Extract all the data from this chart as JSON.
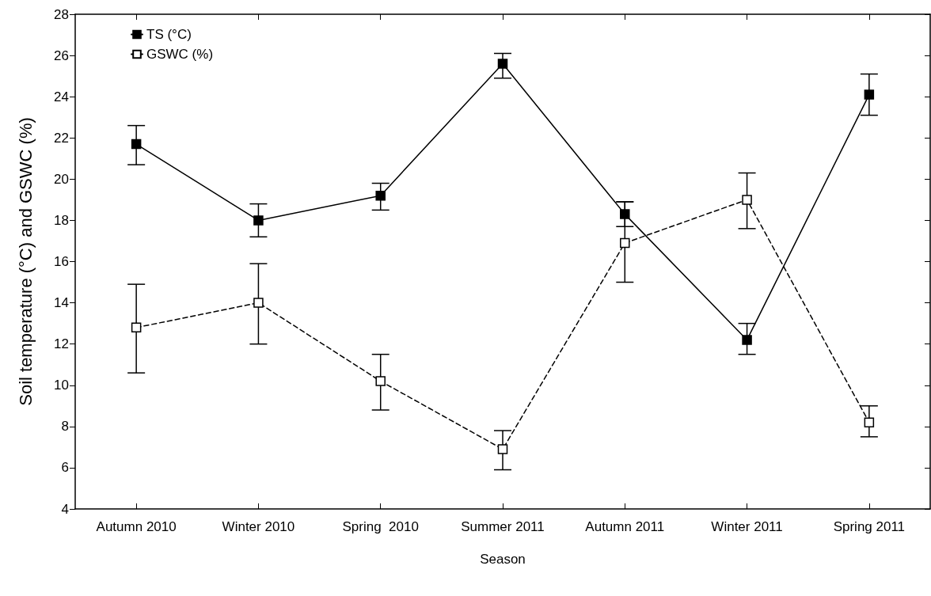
{
  "chart_data": {
    "type": "line",
    "xlabel": "Season",
    "ylabel": "Soil temperature (°C) and GSWC (%)",
    "categories": [
      "Autumn 2010",
      "Winter 2010",
      "Spring  2010",
      "Summer 2011",
      "Autumn 2011",
      "Winter 2011",
      "Spring 2011"
    ],
    "ylim": [
      4,
      28
    ],
    "yticks": [
      4,
      6,
      8,
      10,
      12,
      14,
      16,
      18,
      20,
      22,
      24,
      26,
      28
    ],
    "grid": false,
    "legend": "top left",
    "marker": "square",
    "series": [
      {
        "name": "TS (°C)",
        "color": "#000000",
        "line_style": "solid",
        "values": [
          21.7,
          18.0,
          19.2,
          25.6,
          18.3,
          12.2,
          24.1
        ],
        "errors": [
          [
            20.7,
            22.6
          ],
          [
            17.2,
            18.8
          ],
          [
            18.5,
            19.8
          ],
          [
            24.9,
            26.1
          ],
          [
            17.7,
            18.9
          ],
          [
            11.5,
            13.0
          ],
          [
            23.1,
            25.1
          ]
        ]
      },
      {
        "name": "GSWC (%)",
        "color": "#000000",
        "line_style": "dashed",
        "values": [
          12.8,
          14.0,
          10.2,
          6.9,
          16.9,
          19.0,
          8.2
        ],
        "errors": [
          [
            10.6,
            14.9
          ],
          [
            12.0,
            15.9
          ],
          [
            8.8,
            11.5
          ],
          [
            5.9,
            7.8
          ],
          [
            15.0,
            18.9
          ],
          [
            17.6,
            20.3
          ],
          [
            7.5,
            9.0
          ]
        ]
      }
    ]
  }
}
